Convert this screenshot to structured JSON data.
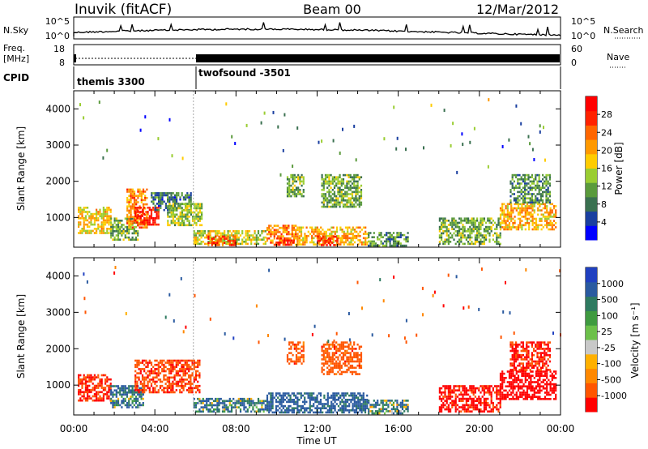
{
  "header": {
    "station": "Inuvik (fitACF)",
    "beam": "Beam 00",
    "date": "12/Mar/2012"
  },
  "summary_panels": {
    "nsky_label": "N.Sky",
    "nsearch_label": "N.Search",
    "nsky_ticks": [
      "10^5",
      "10^0"
    ],
    "nsearch_ticks": [
      "10^5",
      "10^0"
    ],
    "freq_label_1": "Freq.",
    "freq_label_2": "[MHz]",
    "freq_ticks": [
      "18",
      "8"
    ],
    "nave_label": "Nave",
    "nave_ticks": [
      "60",
      "0"
    ],
    "cpid_label": "CPID",
    "cpid_modes": [
      {
        "name": "themis 3300",
        "start_hour": 0,
        "end_hour": 5.9
      },
      {
        "name": "twofsound -3501",
        "start_hour": 5.9,
        "end_hour": 24
      }
    ]
  },
  "chart_data": [
    {
      "type": "heatmap",
      "name": "power",
      "title": "",
      "xlabel": "Time UT",
      "ylabel": "Slant Range [km]",
      "xlim": [
        0,
        24
      ],
      "ylim": [
        180,
        4500
      ],
      "xticks": [
        "00:00",
        "04:00",
        "08:00",
        "12:00",
        "16:00",
        "20:00",
        "00:00"
      ],
      "yticks": [
        1000,
        2000,
        3000,
        4000
      ],
      "colorbar": {
        "label": "Power [dB]",
        "ticks": [
          4,
          8,
          12,
          16,
          20,
          24,
          28
        ],
        "range": [
          0,
          32
        ],
        "colors": [
          "#0000ff",
          "#1a3fa0",
          "#3a7050",
          "#5a9a3c",
          "#9acd32",
          "#ffcc00",
          "#ff9900",
          "#ff6600",
          "#ff2200",
          "#ff0000"
        ]
      },
      "regions": [
        {
          "t0": 0.2,
          "t1": 1.8,
          "r0": 600,
          "r1": 1300,
          "value": 18
        },
        {
          "t0": 1.8,
          "t1": 3.2,
          "r0": 400,
          "r1": 1000,
          "value": 12
        },
        {
          "t0": 2.6,
          "t1": 3.6,
          "r0": 700,
          "r1": 1800,
          "value": 22
        },
        {
          "t0": 3.0,
          "t1": 4.2,
          "r0": 800,
          "r1": 1300,
          "value": 28
        },
        {
          "t0": 3.8,
          "t1": 5.8,
          "r0": 1200,
          "r1": 1700,
          "value": 8
        },
        {
          "t0": 4.6,
          "t1": 6.3,
          "r0": 800,
          "r1": 1400,
          "value": 14
        },
        {
          "t0": 5.9,
          "t1": 9.5,
          "r0": 250,
          "r1": 650,
          "value": 16
        },
        {
          "t0": 6.6,
          "t1": 8.0,
          "r0": 250,
          "r1": 500,
          "value": 26
        },
        {
          "t0": 9.5,
          "t1": 11.0,
          "r0": 250,
          "r1": 800,
          "value": 22
        },
        {
          "t0": 9.9,
          "t1": 10.8,
          "r0": 250,
          "r1": 450,
          "value": 28
        },
        {
          "t0": 10.5,
          "t1": 11.3,
          "r0": 1600,
          "r1": 2200,
          "value": 12
        },
        {
          "t0": 11.0,
          "t1": 14.5,
          "r0": 250,
          "r1": 750,
          "value": 20
        },
        {
          "t0": 12.0,
          "t1": 13.0,
          "r0": 250,
          "r1": 500,
          "value": 28
        },
        {
          "t0": 12.2,
          "t1": 14.2,
          "r0": 1300,
          "r1": 2200,
          "value": 12
        },
        {
          "t0": 14.5,
          "t1": 16.5,
          "r0": 250,
          "r1": 600,
          "value": 10
        },
        {
          "t0": 18.0,
          "t1": 21.0,
          "r0": 250,
          "r1": 1000,
          "value": 12
        },
        {
          "t0": 21.0,
          "t1": 23.8,
          "r0": 700,
          "r1": 1400,
          "value": 20
        },
        {
          "t0": 21.5,
          "t1": 23.5,
          "r0": 1400,
          "r1": 2200,
          "value": 10
        }
      ]
    },
    {
      "type": "heatmap",
      "name": "velocity",
      "title": "",
      "xlabel": "Time UT",
      "ylabel": "Slant Range [km]",
      "xlim": [
        0,
        24
      ],
      "ylim": [
        180,
        4500
      ],
      "xticks": [
        "00:00",
        "04:00",
        "08:00",
        "12:00",
        "16:00",
        "20:00",
        "00:00"
      ],
      "yticks": [
        1000,
        2000,
        3000,
        4000
      ],
      "colorbar": {
        "label": "Velocity [m s⁻¹]",
        "ticks": [
          "1000",
          "500",
          "100",
          "25",
          "-25",
          "-100",
          "-500",
          "-1000"
        ],
        "colors": [
          "#2040c0",
          "#2a5aa0",
          "#2e7a60",
          "#3f9a40",
          "#6cc04a",
          "#c8c8c8",
          "#ffb000",
          "#ff8800",
          "#ff5500",
          "#ff0000"
        ]
      },
      "regions": [
        {
          "t0": 0.2,
          "t1": 1.8,
          "r0": 600,
          "r1": 1300,
          "value": -300
        },
        {
          "t0": 1.8,
          "t1": 3.4,
          "r0": 400,
          "r1": 1000,
          "value": 60
        },
        {
          "t0": 3.0,
          "t1": 6.2,
          "r0": 800,
          "r1": 1700,
          "value": -200
        },
        {
          "t0": 5.9,
          "t1": 9.5,
          "r0": 250,
          "r1": 650,
          "value": 50
        },
        {
          "t0": 9.5,
          "t1": 14.5,
          "r0": 250,
          "r1": 800,
          "value": 120
        },
        {
          "t0": 10.5,
          "t1": 11.3,
          "r0": 1600,
          "r1": 2200,
          "value": -150
        },
        {
          "t0": 12.2,
          "t1": 14.2,
          "r0": 1300,
          "r1": 2200,
          "value": -150
        },
        {
          "t0": 14.5,
          "t1": 16.5,
          "r0": 250,
          "r1": 600,
          "value": 40
        },
        {
          "t0": 18.0,
          "t1": 21.0,
          "r0": 250,
          "r1": 1000,
          "value": -400
        },
        {
          "t0": 21.0,
          "t1": 23.8,
          "r0": 600,
          "r1": 1400,
          "value": -700
        },
        {
          "t0": 21.5,
          "t1": 23.5,
          "r0": 1400,
          "r1": 2200,
          "value": -300
        }
      ]
    }
  ]
}
